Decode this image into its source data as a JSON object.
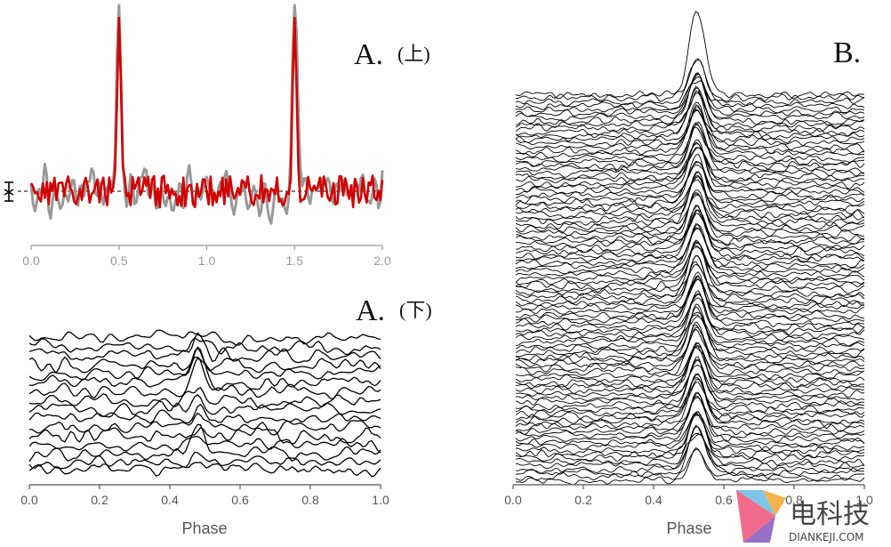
{
  "figure": {
    "panels": [
      {
        "label": "A.",
        "sub": "(上)"
      },
      {
        "label": "A.",
        "sub": "(下)"
      },
      {
        "label": "B.",
        "sub": ""
      }
    ],
    "watermark": {
      "main": "电科技",
      "sub": "DIANKEJI.COM"
    }
  },
  "chart_data": [
    {
      "id": "A-top",
      "type": "line",
      "xlabel": "",
      "ylabel": "",
      "xlim": [
        0,
        2
      ],
      "xticks": [
        "0.0",
        "0.5",
        "1.0",
        "1.5",
        "2.0"
      ],
      "pulse_phases": [
        0.5,
        1.5
      ],
      "series": [
        {
          "color": "#999999"
        },
        {
          "color": "#d40000"
        }
      ],
      "grid": false,
      "baseline": "dashed"
    },
    {
      "id": "A-bottom",
      "type": "line",
      "xlabel": "Phase",
      "xlim": [
        0,
        1
      ],
      "xticks": [
        "0.0",
        "0.2",
        "0.4",
        "0.6",
        "0.8",
        "1.0"
      ],
      "n_traces": 16,
      "peak_phase": 0.48,
      "grid": false
    },
    {
      "id": "B",
      "type": "line",
      "xlabel": "Phase",
      "xlim": [
        0,
        1
      ],
      "xticks": [
        "0.0",
        "0.2",
        "0.4",
        "0.6",
        "0.8",
        "1.0"
      ],
      "n_traces": 104,
      "peak_phase": 0.52,
      "grid": false
    }
  ]
}
